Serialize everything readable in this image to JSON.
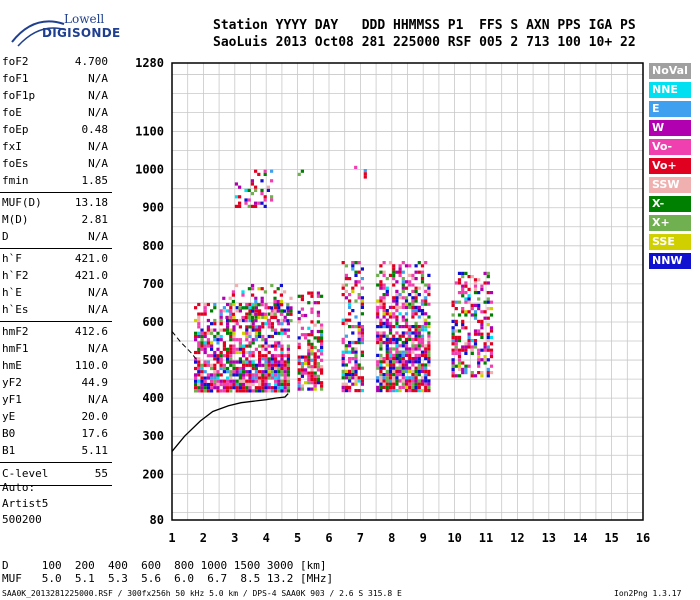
{
  "logo": {
    "line1": "Lowell",
    "line2": "DIGISONDE"
  },
  "header": {
    "line1": "Station YYYY DAY   DDD HHMMSS P1  FFS S AXN PPS IGA PS",
    "line2": "SaoLuis 2013 Oct08 281 225000 RSF 005 2 713 100 10+ 22"
  },
  "params_group1": [
    {
      "label": "foF2",
      "value": "4.700"
    },
    {
      "label": "foF1",
      "value": "N/A"
    },
    {
      "label": "foF1p",
      "value": "N/A"
    },
    {
      "label": "foE",
      "value": "N/A"
    },
    {
      "label": "foEp",
      "value": "0.48"
    },
    {
      "label": "fxI",
      "value": "N/A"
    },
    {
      "label": "foEs",
      "value": "N/A"
    },
    {
      "label": "fmin",
      "value": "1.85"
    }
  ],
  "params_group2": [
    {
      "label": "MUF(D)",
      "value": "13.18"
    },
    {
      "label": "M(D)",
      "value": "2.81"
    },
    {
      "label": "D",
      "value": "N/A"
    }
  ],
  "params_group3": [
    {
      "label": "h`F",
      "value": "421.0"
    },
    {
      "label": "h`F2",
      "value": "421.0"
    },
    {
      "label": "h`E",
      "value": "N/A"
    },
    {
      "label": "h`Es",
      "value": "N/A"
    }
  ],
  "params_group4": [
    {
      "label": "hmF2",
      "value": "412.6"
    },
    {
      "label": "hmF1",
      "value": "N/A"
    },
    {
      "label": "hmE",
      "value": "110.0"
    },
    {
      "label": "yF2",
      "value": "44.9"
    },
    {
      "label": "yF1",
      "value": "N/A"
    },
    {
      "label": "yE",
      "value": "20.0"
    },
    {
      "label": "B0",
      "value": "17.6"
    },
    {
      "label": "B1",
      "value": "5.11"
    }
  ],
  "clevel": {
    "label": "C-level",
    "value": "55"
  },
  "auto": {
    "line1": "Auto:",
    "line2": "Artist5",
    "line3": "500200"
  },
  "legend": [
    {
      "label": "NoVal",
      "color": "#a0a0a0"
    },
    {
      "label": "NNE",
      "color": "#00e0f0"
    },
    {
      "label": "E",
      "color": "#40a0f0"
    },
    {
      "label": "W",
      "color": "#b000b0"
    },
    {
      "label": "Vo-",
      "color": "#f040b0"
    },
    {
      "label": "Vo+",
      "color": "#e00020"
    },
    {
      "label": "SSW",
      "color": "#f0b0b0"
    },
    {
      "label": "X-",
      "color": "#008000"
    },
    {
      "label": "X+",
      "color": "#70b050"
    },
    {
      "label": "SSE",
      "color": "#d0d000"
    },
    {
      "label": "NNW",
      "color": "#1010d0"
    }
  ],
  "footer": {
    "line1": "D     100  200  400  600  800 1000 1500 3000 [km]",
    "line2": "MUF   5.0  5.1  5.3  5.6  6.0  6.7  8.5 13.2 [MHz]",
    "line3": "SAA0K_2013281225000.RSF / 300fx256h 50 kHz 5.0 km / DPS-4 SAA0K 903 / 2.6 S 315.8 E",
    "version": "Ion2Png 1.3.17"
  },
  "chart_data": {
    "type": "scatter",
    "xlim": [
      1,
      16
    ],
    "ylim": [
      80,
      1280
    ],
    "x_ticks": [
      "1",
      "2",
      "3",
      "4",
      "5",
      "6",
      "7",
      "8",
      "9",
      "10",
      "11",
      "12",
      "13",
      "14",
      "15",
      "16"
    ],
    "y_ticks": [
      "80",
      "200",
      "300",
      "400",
      "500",
      "600",
      "700",
      "800",
      "900",
      "1000",
      "1100",
      "1280"
    ],
    "grid": true,
    "clusters": [
      {
        "x": [
          1.7,
          4.7
        ],
        "y": [
          420,
          650
        ],
        "density": 0.75
      },
      {
        "x": [
          2.6,
          4.8
        ],
        "y": [
          600,
          700
        ],
        "density": 0.35
      },
      {
        "x": [
          5.0,
          5.8
        ],
        "y": [
          420,
          680
        ],
        "density": 0.6
      },
      {
        "x": [
          6.4,
          7.1
        ],
        "y": [
          420,
          760
        ],
        "density": 0.6
      },
      {
        "x": [
          7.5,
          9.2
        ],
        "y": [
          420,
          760
        ],
        "density": 0.75
      },
      {
        "x": [
          9.9,
          11.2
        ],
        "y": [
          460,
          740
        ],
        "density": 0.45
      },
      {
        "x": [
          3.0,
          4.2
        ],
        "y": [
          900,
          1000
        ],
        "density": 0.25
      },
      {
        "x": [
          5.0,
          5.6
        ],
        "y": [
          970,
          1000
        ],
        "density": 0.2
      },
      {
        "x": [
          6.8,
          7.2
        ],
        "y": [
          980,
          1010
        ],
        "density": 0.2
      }
    ],
    "trace": {
      "x": [
        1.0,
        1.4,
        1.9,
        2.3,
        2.8,
        3.2,
        3.6,
        4.0,
        4.3,
        4.6,
        4.7
      ],
      "y": [
        260,
        300,
        340,
        365,
        380,
        388,
        392,
        396,
        400,
        403,
        412
      ]
    },
    "trace_dashed": {
      "x": [
        1.0,
        1.3,
        1.6,
        1.8
      ],
      "y": [
        575,
        545,
        520,
        500
      ]
    }
  }
}
